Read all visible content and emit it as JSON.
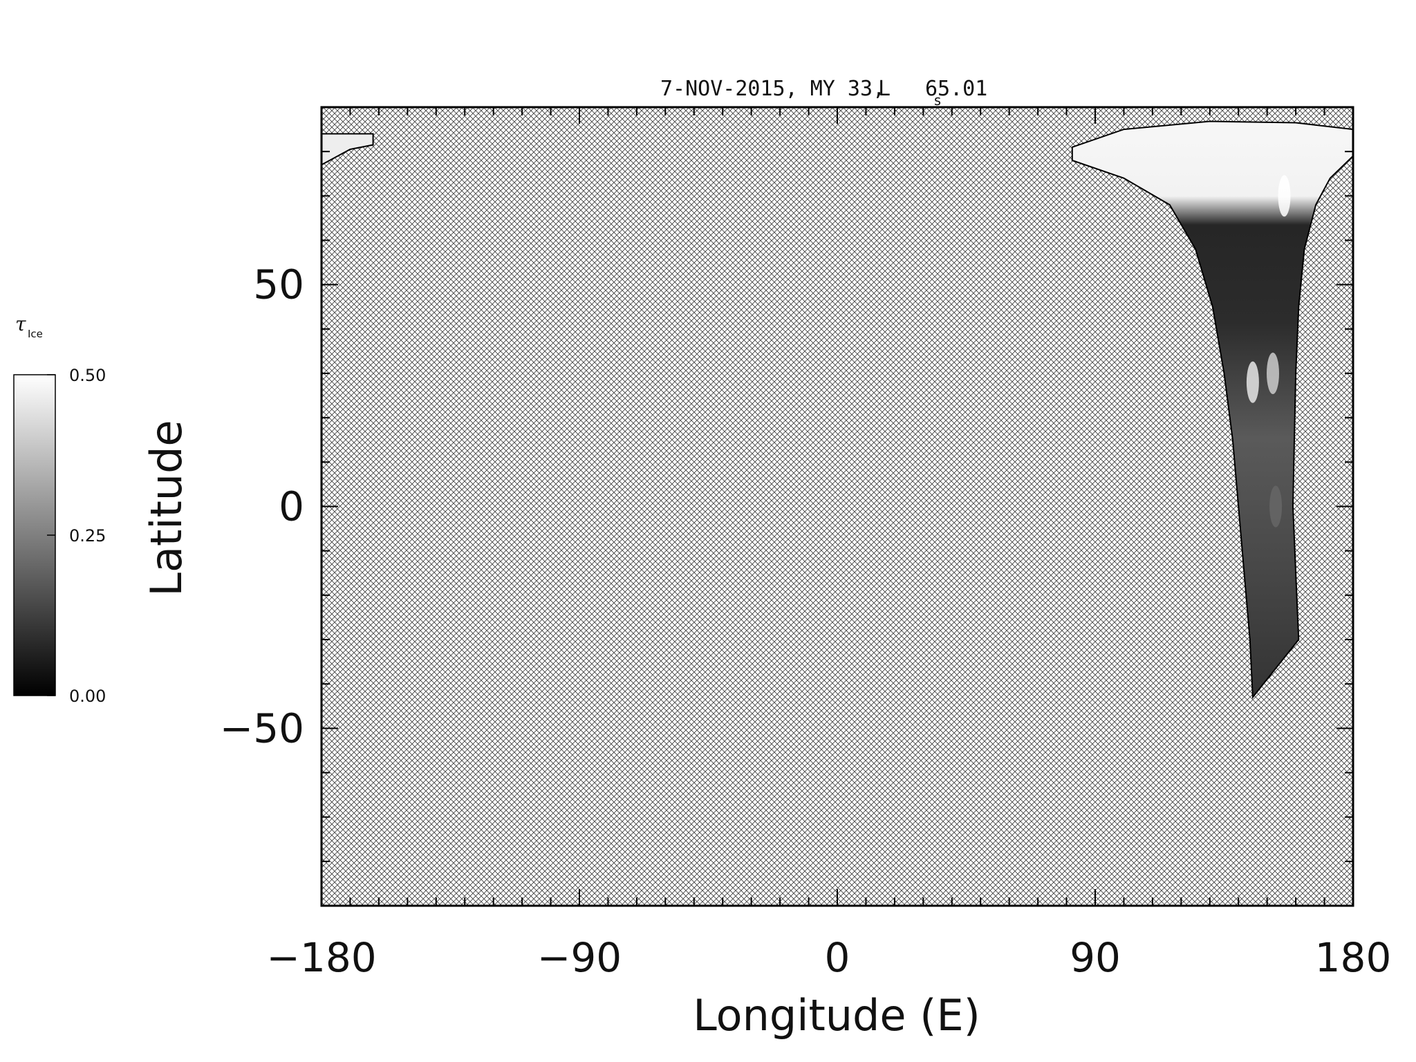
{
  "chart_data": {
    "type": "heatmap",
    "title": "7-NOV-2015, MY 33,",
    "title_ls_symbol": "L",
    "title_ls_subscript": "s",
    "title_ls_value": "65.01",
    "xlabel": "Longitude (E)",
    "ylabel": "Latitude",
    "xlim": [
      -180,
      180
    ],
    "ylim": [
      -90,
      90
    ],
    "x_ticks": [
      -180,
      -90,
      0,
      90,
      180
    ],
    "x_tick_labels": [
      "−180",
      "−90",
      "0",
      "90",
      "180"
    ],
    "y_ticks": [
      -50,
      0,
      50
    ],
    "y_tick_labels": [
      "−50",
      "0",
      "50"
    ],
    "x_minor_step": 10,
    "y_minor_step": 10,
    "no_data_pattern": "crosshatch",
    "colorbar": {
      "label": "τ",
      "label_subscript": "Ice",
      "min": 0.0,
      "max": 0.5,
      "ticks": [
        0.0,
        0.25,
        0.5
      ],
      "tick_labels": [
        "0.00",
        "0.25",
        "0.50"
      ],
      "colormap": "grayscale"
    },
    "swaths": [
      {
        "name": "main-swath",
        "outline": [
          [
            82,
            78
          ],
          [
            100,
            74
          ],
          [
            116,
            68
          ],
          [
            125,
            58
          ],
          [
            131,
            45
          ],
          [
            135,
            30
          ],
          [
            138,
            15
          ],
          [
            140,
            0
          ],
          [
            142,
            -15
          ],
          [
            144,
            -30
          ],
          [
            145,
            -43
          ],
          [
            161,
            -30
          ],
          [
            160,
            -15
          ],
          [
            159,
            0
          ],
          [
            159.5,
            15
          ],
          [
            160,
            30
          ],
          [
            161,
            45
          ],
          [
            163,
            58
          ],
          [
            167,
            68
          ],
          [
            172,
            74
          ],
          [
            180,
            79
          ],
          [
            180,
            85
          ],
          [
            160,
            86.5
          ],
          [
            130,
            86.8
          ],
          [
            100,
            85
          ],
          [
            82,
            81
          ]
        ],
        "features": [
          {
            "lon": 145,
            "lat": 28,
            "value": 0.45
          },
          {
            "lon": 156,
            "lat": 70,
            "value": 0.5
          },
          {
            "lon": 152,
            "lat": 30,
            "value": 0.4
          },
          {
            "lon": 153,
            "lat": 0,
            "value": 0.2
          }
        ]
      },
      {
        "name": "edge-swath",
        "outline": [
          [
            -180,
            77
          ],
          [
            -170,
            80.5
          ],
          [
            -162,
            81.5
          ],
          [
            -162,
            84
          ],
          [
            -180,
            84
          ]
        ]
      }
    ]
  }
}
